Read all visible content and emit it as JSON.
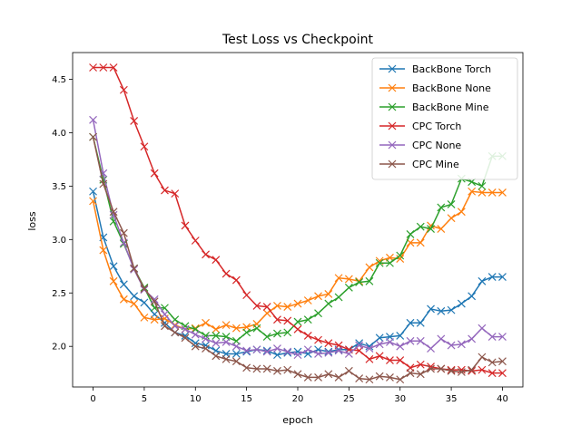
{
  "chart_data": {
    "type": "line",
    "title": "Test Loss vs Checkpoint",
    "xlabel": "epoch",
    "ylabel": "loss",
    "xlim": [
      -2,
      42
    ],
    "ylim": [
      1.62,
      4.75
    ],
    "xticks": [
      0,
      5,
      10,
      15,
      20,
      25,
      30,
      35,
      40
    ],
    "yticks": [
      2.0,
      2.5,
      3.0,
      3.5,
      4.0,
      4.5
    ],
    "grid": false,
    "legend_position": "top-right",
    "marker": "x",
    "x": [
      0,
      1,
      2,
      3,
      4,
      5,
      6,
      7,
      8,
      9,
      10,
      11,
      12,
      13,
      14,
      15,
      16,
      17,
      18,
      19,
      20,
      21,
      22,
      23,
      24,
      25,
      26,
      27,
      28,
      29,
      30,
      31,
      32,
      33,
      34,
      35,
      36,
      37,
      38,
      39,
      40
    ],
    "series": [
      {
        "name": "BackBone Torch",
        "color": "#1f77b4",
        "values": [
          3.45,
          3.02,
          2.75,
          2.58,
          2.47,
          2.41,
          2.3,
          2.22,
          2.13,
          2.1,
          2.03,
          2.01,
          1.96,
          1.93,
          1.93,
          1.95,
          1.97,
          1.96,
          1.92,
          1.94,
          1.95,
          1.93,
          1.97,
          1.95,
          1.97,
          1.97,
          2.03,
          2.0,
          2.08,
          2.09,
          2.1,
          2.22,
          2.22,
          2.35,
          2.33,
          2.34,
          2.4,
          2.47,
          2.61,
          2.65,
          2.65
        ]
      },
      {
        "name": "BackBone None",
        "color": "#ff7f0e",
        "values": [
          3.36,
          2.9,
          2.61,
          2.44,
          2.4,
          2.27,
          2.25,
          2.26,
          2.2,
          2.16,
          2.17,
          2.22,
          2.16,
          2.2,
          2.17,
          2.18,
          2.21,
          2.31,
          2.38,
          2.37,
          2.4,
          2.43,
          2.47,
          2.49,
          2.64,
          2.63,
          2.61,
          2.74,
          2.8,
          2.83,
          2.82,
          2.97,
          2.97,
          3.13,
          3.1,
          3.2,
          3.26,
          3.45,
          3.44,
          3.44,
          3.44
        ]
      },
      {
        "name": "BackBone Mine",
        "color": "#2ca02c",
        "values": [
          3.96,
          3.56,
          3.17,
          2.96,
          2.73,
          2.55,
          2.36,
          2.36,
          2.25,
          2.19,
          2.16,
          2.1,
          2.1,
          2.09,
          2.05,
          2.13,
          2.17,
          2.09,
          2.12,
          2.13,
          2.23,
          2.25,
          2.31,
          2.4,
          2.46,
          2.55,
          2.6,
          2.61,
          2.78,
          2.78,
          2.85,
          3.05,
          3.12,
          3.1,
          3.3,
          3.33,
          3.57,
          3.54,
          3.5,
          3.78,
          3.78
        ]
      },
      {
        "name": "CPC Torch",
        "color": "#d62728",
        "values": [
          4.61,
          4.61,
          4.61,
          4.4,
          4.11,
          3.87,
          3.62,
          3.46,
          3.43,
          3.13,
          2.99,
          2.86,
          2.81,
          2.68,
          2.62,
          2.48,
          2.38,
          2.37,
          2.25,
          2.24,
          2.16,
          2.1,
          2.06,
          2.03,
          2.01,
          1.97,
          1.96,
          1.88,
          1.91,
          1.87,
          1.87,
          1.8,
          1.83,
          1.81,
          1.79,
          1.78,
          1.78,
          1.77,
          1.78,
          1.75,
          1.75
        ]
      },
      {
        "name": "CPC None",
        "color": "#9467bd",
        "values": [
          4.12,
          3.62,
          3.23,
          2.97,
          2.72,
          2.53,
          2.44,
          2.3,
          2.19,
          2.16,
          2.11,
          2.07,
          2.03,
          2.04,
          2.0,
          1.96,
          1.97,
          1.95,
          1.98,
          1.95,
          1.92,
          1.97,
          1.93,
          1.94,
          1.96,
          1.93,
          2.01,
          1.98,
          2.02,
          2.04,
          2.0,
          2.05,
          2.05,
          1.98,
          2.07,
          2.01,
          2.02,
          2.07,
          2.17,
          2.09,
          2.09
        ]
      },
      {
        "name": "CPC Mine",
        "color": "#8c564b",
        "values": [
          3.96,
          3.52,
          3.26,
          3.06,
          2.73,
          2.54,
          2.42,
          2.19,
          2.13,
          2.08,
          2.0,
          1.98,
          1.91,
          1.88,
          1.86,
          1.8,
          1.79,
          1.79,
          1.77,
          1.78,
          1.74,
          1.71,
          1.71,
          1.74,
          1.71,
          1.77,
          1.7,
          1.69,
          1.72,
          1.71,
          1.69,
          1.75,
          1.74,
          1.79,
          1.79,
          1.77,
          1.76,
          1.78,
          1.9,
          1.85,
          1.86
        ]
      }
    ]
  }
}
